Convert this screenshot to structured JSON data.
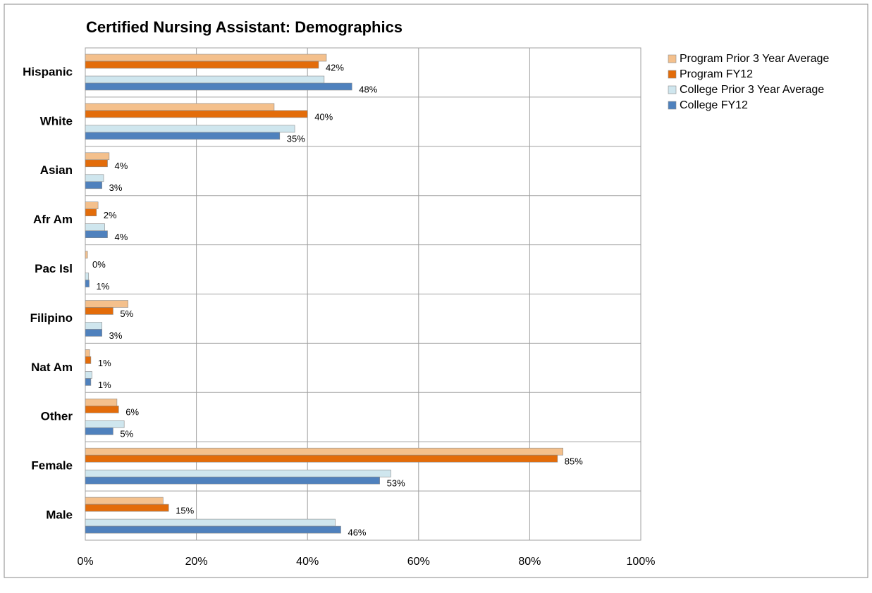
{
  "chart_data": {
    "type": "hbar",
    "title": "Certified Nursing Assistant: Demographics",
    "categories": [
      "Hispanic",
      "White",
      "Asian",
      "Afr Am",
      "Pac Isl",
      "Filipino",
      "Nat Am",
      "Other",
      "Female",
      "Male"
    ],
    "series": [
      {
        "name": "Program Prior 3 Year Average",
        "color": "#f4c08c",
        "values": [
          43.4,
          34,
          4.3,
          2.3,
          0.4,
          7.7,
          0.8,
          5.7,
          86,
          14
        ]
      },
      {
        "name": "Program FY12",
        "color": "#e36c0a",
        "values": [
          42,
          40,
          4,
          2,
          0,
          5,
          1,
          6,
          85,
          15
        ],
        "value_labels": [
          "42%",
          "40%",
          "4%",
          "2%",
          "0%",
          "5%",
          "1%",
          "6%",
          "85%",
          "15%"
        ]
      },
      {
        "name": "College Prior 3 Year Average",
        "color": "#cfe6ee",
        "values": [
          43,
          37.7,
          3.3,
          3.5,
          0.6,
          3,
          1.2,
          7,
          55,
          45
        ]
      },
      {
        "name": "College FY12",
        "color": "#4f81bd",
        "values": [
          48,
          35,
          3,
          4,
          0.7,
          3,
          1,
          5,
          53,
          46
        ],
        "value_labels": [
          "48%",
          "35%",
          "3%",
          "4%",
          "1%",
          "3%",
          "1%",
          "5%",
          "53%",
          "46%"
        ]
      }
    ],
    "xlim": [
      0,
      100
    ],
    "xticks": [
      {
        "value": 0,
        "label": "0%"
      },
      {
        "value": 20,
        "label": "20%"
      },
      {
        "value": 40,
        "label": "40%"
      },
      {
        "value": 60,
        "label": "60%"
      },
      {
        "value": 80,
        "label": "80%"
      },
      {
        "value": 100,
        "label": "100%"
      }
    ],
    "grid": true,
    "legend": "right"
  }
}
